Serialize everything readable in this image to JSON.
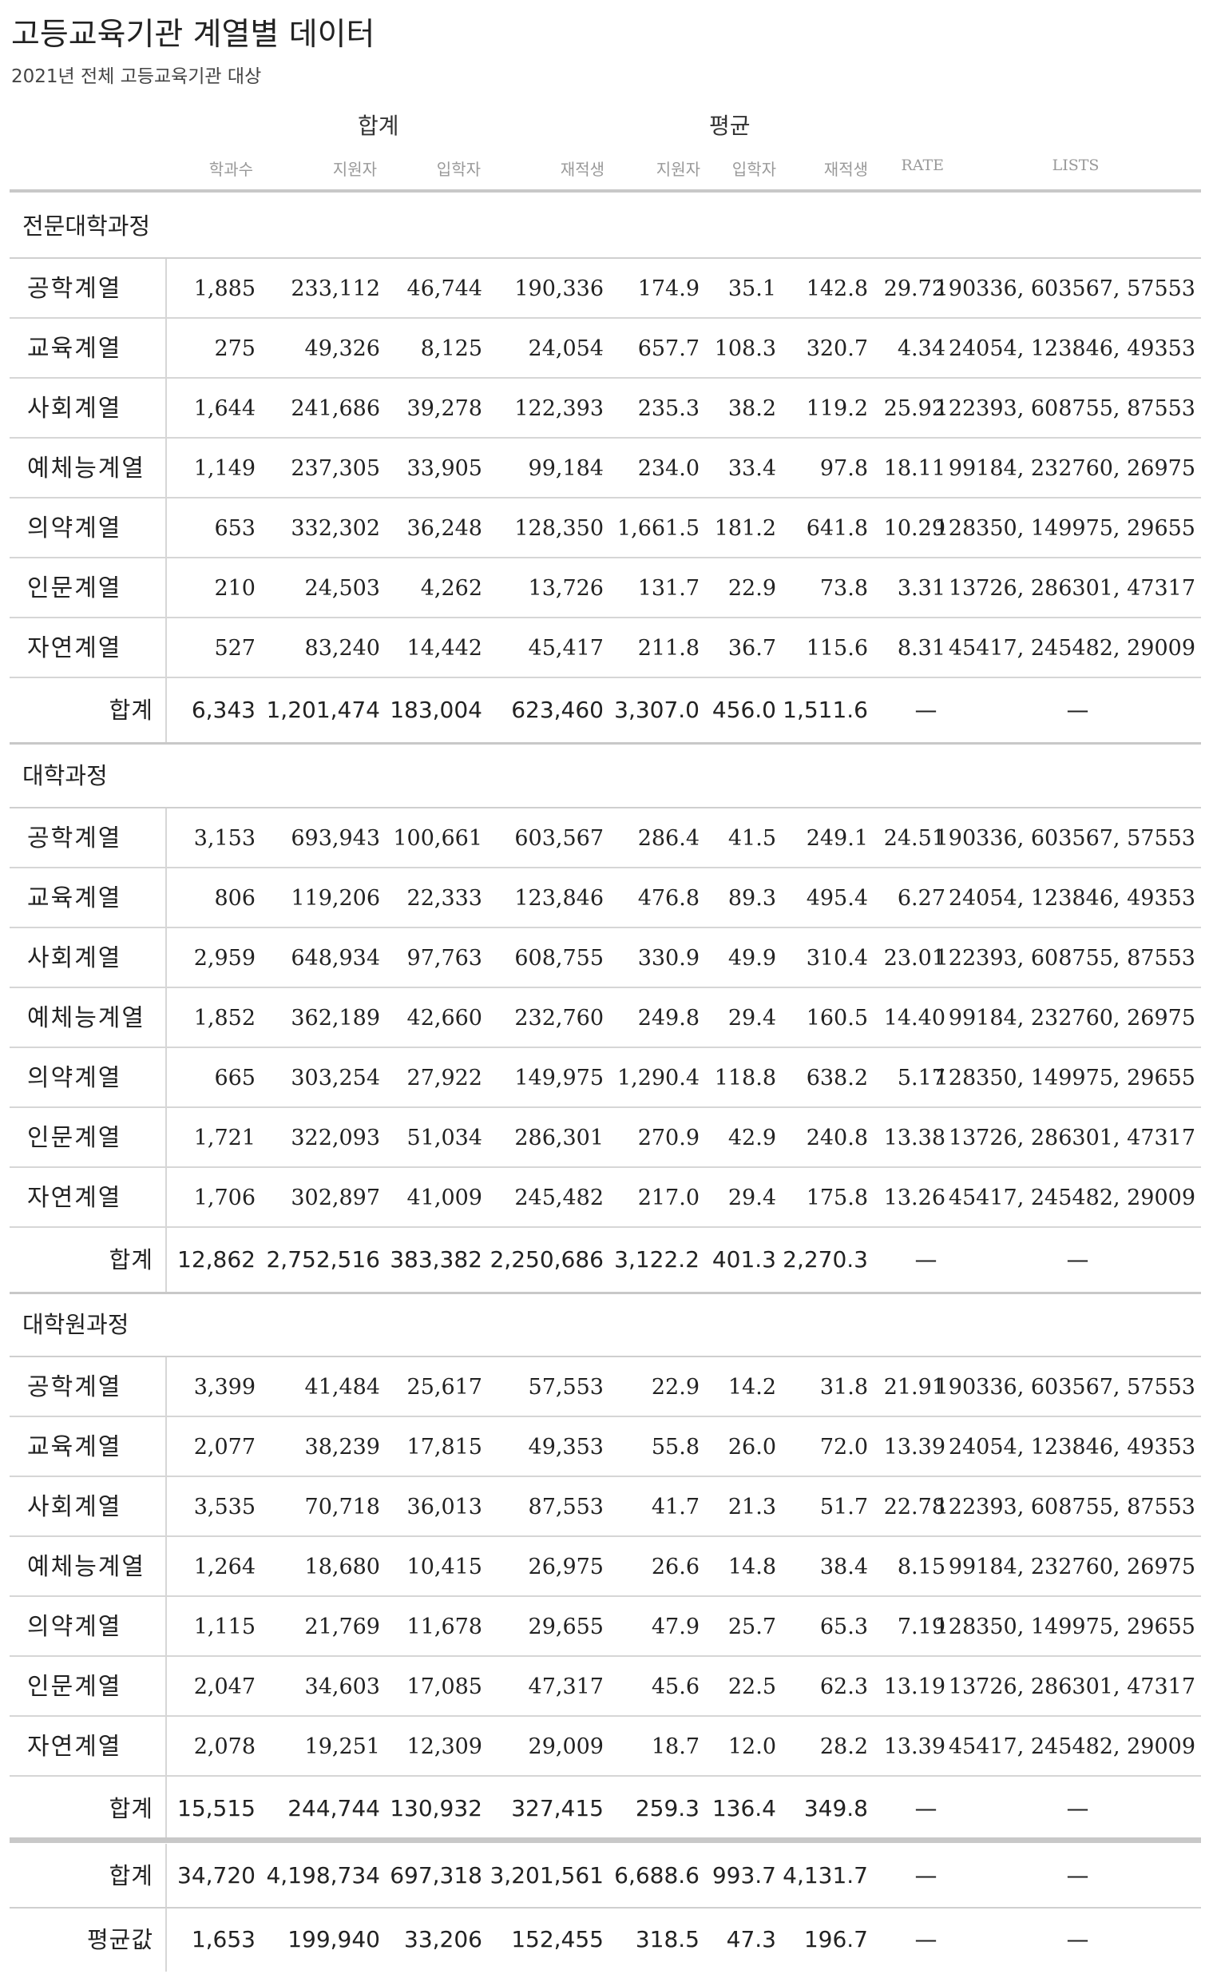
{
  "title": "고등교육기관 계열별 데이터",
  "subtitle": "2021년 전체 고등교육기관 대상",
  "groups": {
    "total": "합계",
    "average": "평균"
  },
  "columns": [
    "학과수",
    "지원자",
    "입학자",
    "재적생",
    "지원자",
    "입학자",
    "재적생",
    "RATE",
    "LISTS"
  ],
  "sections": [
    {
      "name": "전문대학과정",
      "rows": [
        [
          "공학계열",
          "1,885",
          "233,112",
          "46,744",
          "190,336",
          "174.9",
          "35.1",
          "142.8",
          "29.72",
          "190336, 603567, 57553"
        ],
        [
          "교육계열",
          "275",
          "49,326",
          "8,125",
          "24,054",
          "657.7",
          "108.3",
          "320.7",
          "4.34",
          "24054, 123846, 49353"
        ],
        [
          "사회계열",
          "1,644",
          "241,686",
          "39,278",
          "122,393",
          "235.3",
          "38.2",
          "119.2",
          "25.92",
          "122393, 608755, 87553"
        ],
        [
          "예체능계열",
          "1,149",
          "237,305",
          "33,905",
          "99,184",
          "234.0",
          "33.4",
          "97.8",
          "18.11",
          "99184, 232760, 26975"
        ],
        [
          "의약계열",
          "653",
          "332,302",
          "36,248",
          "128,350",
          "1,661.5",
          "181.2",
          "641.8",
          "10.29",
          "128350, 149975, 29655"
        ],
        [
          "인문계열",
          "210",
          "24,503",
          "4,262",
          "13,726",
          "131.7",
          "22.9",
          "73.8",
          "3.31",
          "13726, 286301, 47317"
        ],
        [
          "자연계열",
          "527",
          "83,240",
          "14,442",
          "45,417",
          "211.8",
          "36.7",
          "115.6",
          "8.31",
          "45417, 245482, 29009"
        ]
      ],
      "total": [
        "합계",
        "6,343",
        "1,201,474",
        "183,004",
        "623,460",
        "3,307.0",
        "456.0",
        "1,511.6",
        "—",
        "—"
      ]
    },
    {
      "name": "대학과정",
      "rows": [
        [
          "공학계열",
          "3,153",
          "693,943",
          "100,661",
          "603,567",
          "286.4",
          "41.5",
          "249.1",
          "24.51",
          "190336, 603567, 57553"
        ],
        [
          "교육계열",
          "806",
          "119,206",
          "22,333",
          "123,846",
          "476.8",
          "89.3",
          "495.4",
          "6.27",
          "24054, 123846, 49353"
        ],
        [
          "사회계열",
          "2,959",
          "648,934",
          "97,763",
          "608,755",
          "330.9",
          "49.9",
          "310.4",
          "23.01",
          "122393, 608755, 87553"
        ],
        [
          "예체능계열",
          "1,852",
          "362,189",
          "42,660",
          "232,760",
          "249.8",
          "29.4",
          "160.5",
          "14.40",
          "99184, 232760, 26975"
        ],
        [
          "의약계열",
          "665",
          "303,254",
          "27,922",
          "149,975",
          "1,290.4",
          "118.8",
          "638.2",
          "5.17",
          "128350, 149975, 29655"
        ],
        [
          "인문계열",
          "1,721",
          "322,093",
          "51,034",
          "286,301",
          "270.9",
          "42.9",
          "240.8",
          "13.38",
          "13726, 286301, 47317"
        ],
        [
          "자연계열",
          "1,706",
          "302,897",
          "41,009",
          "245,482",
          "217.0",
          "29.4",
          "175.8",
          "13.26",
          "45417, 245482, 29009"
        ]
      ],
      "total": [
        "합계",
        "12,862",
        "2,752,516",
        "383,382",
        "2,250,686",
        "3,122.2",
        "401.3",
        "2,270.3",
        "—",
        "—"
      ]
    },
    {
      "name": "대학원과정",
      "rows": [
        [
          "공학계열",
          "3,399",
          "41,484",
          "25,617",
          "57,553",
          "22.9",
          "14.2",
          "31.8",
          "21.91",
          "190336, 603567, 57553"
        ],
        [
          "교육계열",
          "2,077",
          "38,239",
          "17,815",
          "49,353",
          "55.8",
          "26.0",
          "72.0",
          "13.39",
          "24054, 123846, 49353"
        ],
        [
          "사회계열",
          "3,535",
          "70,718",
          "36,013",
          "87,553",
          "41.7",
          "21.3",
          "51.7",
          "22.78",
          "122393, 608755, 87553"
        ],
        [
          "예체능계열",
          "1,264",
          "18,680",
          "10,415",
          "26,975",
          "26.6",
          "14.8",
          "38.4",
          "8.15",
          "99184, 232760, 26975"
        ],
        [
          "의약계열",
          "1,115",
          "21,769",
          "11,678",
          "29,655",
          "47.9",
          "25.7",
          "65.3",
          "7.19",
          "128350, 149975, 29655"
        ],
        [
          "인문계열",
          "2,047",
          "34,603",
          "17,085",
          "47,317",
          "45.6",
          "22.5",
          "62.3",
          "13.19",
          "13726, 286301, 47317"
        ],
        [
          "자연계열",
          "2,078",
          "19,251",
          "12,309",
          "29,009",
          "18.7",
          "12.0",
          "28.2",
          "13.39",
          "45417, 245482, 29009"
        ]
      ],
      "total": [
        "합계",
        "15,515",
        "244,744",
        "130,932",
        "327,415",
        "259.3",
        "136.4",
        "349.8",
        "—",
        "—"
      ]
    }
  ],
  "grand": [
    [
      "합계",
      "34,720",
      "4,198,734",
      "697,318",
      "3,201,561",
      "6,688.6",
      "993.7",
      "4,131.7",
      "—",
      "—"
    ],
    [
      "평균값",
      "1,653",
      "199,940",
      "33,206",
      "152,455",
      "318.5",
      "47.3",
      "196.7",
      "—",
      "—"
    ]
  ]
}
